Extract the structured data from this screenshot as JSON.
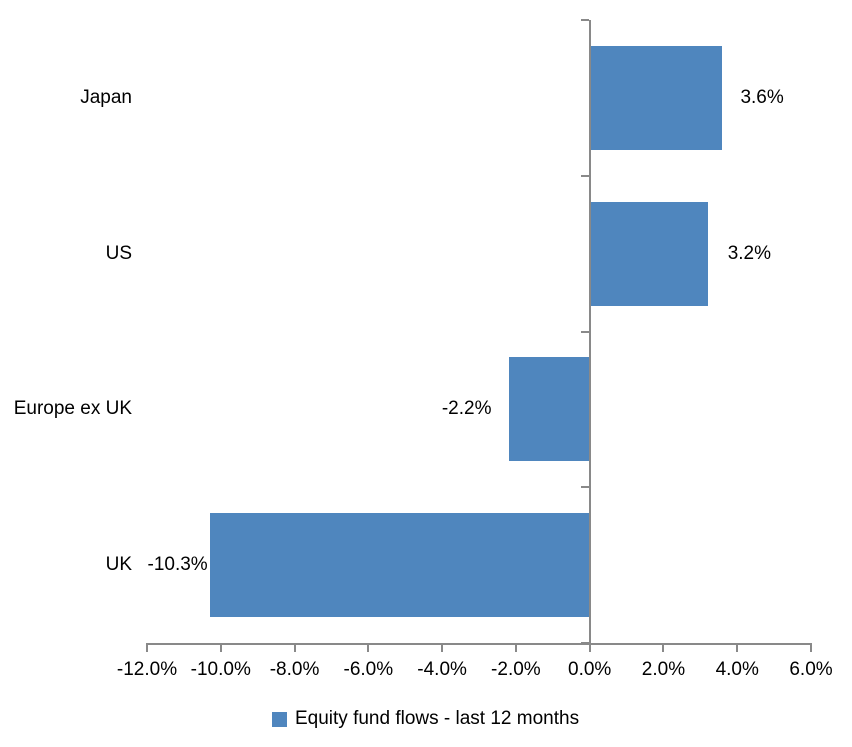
{
  "chart_data": {
    "type": "bar",
    "orientation": "horizontal",
    "title": "",
    "categories": [
      "Japan",
      "US",
      "Europe ex UK",
      "UK"
    ],
    "series": [
      {
        "name": "Equity fund flows - last 12 months",
        "values": [
          3.6,
          3.2,
          -2.2,
          -10.3
        ]
      }
    ],
    "data_labels": [
      "3.6%",
      "3.2%",
      "-2.2%",
      "-10.3%"
    ],
    "x_axis": {
      "min": -12,
      "max": 6,
      "tick_step": 2,
      "tick_labels": [
        "-12.0%",
        "-10.0%",
        "-8.0%",
        "-6.0%",
        "-4.0%",
        "-2.0%",
        "0.0%",
        "2.0%",
        "4.0%",
        "6.0%"
      ]
    },
    "grid": false,
    "legend": {
      "position": "bottom",
      "label": "Equity fund flows - last 12 months"
    },
    "colors": {
      "bar": "#4f86be",
      "axis": "#898989",
      "text": "#000000",
      "background": "#ffffff"
    }
  }
}
